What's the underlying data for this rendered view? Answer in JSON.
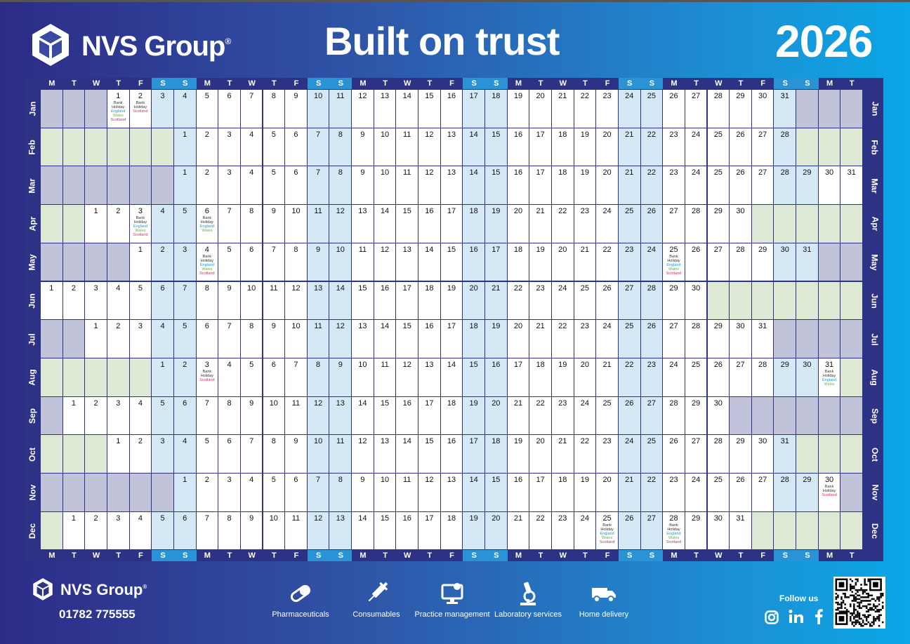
{
  "brand": {
    "name": "NVS Group",
    "reg": "®"
  },
  "headline": "Built on trust",
  "year": "2026",
  "weekday_header": [
    "M",
    "T",
    "W",
    "T",
    "F",
    "S",
    "S",
    "M",
    "T",
    "W",
    "T",
    "F",
    "S",
    "S",
    "M",
    "T",
    "W",
    "T",
    "F",
    "S",
    "S",
    "M",
    "T",
    "W",
    "T",
    "F",
    "S",
    "S",
    "M",
    "T",
    "W",
    "T",
    "F",
    "S",
    "S",
    "M",
    "T"
  ],
  "holiday_label": [
    "Bank",
    "Holiday"
  ],
  "holiday_regions": {
    "en": "England",
    "wa": "Wales",
    "sc": "Scotland"
  },
  "months": [
    {
      "label": "Jan",
      "offset": 3,
      "days": 31,
      "gray": true,
      "holidays": {
        "1": [
          "en",
          "wa",
          "sc"
        ],
        "2": [
          "sc"
        ]
      }
    },
    {
      "label": "Feb",
      "offset": 6,
      "days": 28,
      "gray": false,
      "holidays": {}
    },
    {
      "label": "Mar",
      "offset": 6,
      "days": 31,
      "gray": true,
      "holidays": {}
    },
    {
      "label": "Apr",
      "offset": 2,
      "days": 30,
      "gray": false,
      "holidays": {
        "3": [
          "en",
          "wa",
          "sc"
        ],
        "6": [
          "en",
          "wa"
        ]
      }
    },
    {
      "label": "May",
      "offset": 4,
      "days": 31,
      "gray": true,
      "holidays": {
        "4": [
          "en",
          "wa",
          "sc"
        ],
        "25": [
          "en",
          "wa",
          "sc"
        ]
      }
    },
    {
      "label": "Jun",
      "offset": 0,
      "days": 30,
      "gray": false,
      "holidays": {}
    },
    {
      "label": "Jul",
      "offset": 2,
      "days": 31,
      "gray": true,
      "holidays": {}
    },
    {
      "label": "Aug",
      "offset": 5,
      "days": 31,
      "gray": false,
      "holidays": {
        "3": [
          "sc"
        ],
        "31": [
          "en",
          "wa"
        ]
      }
    },
    {
      "label": "Sep",
      "offset": 1,
      "days": 30,
      "gray": true,
      "holidays": {}
    },
    {
      "label": "Oct",
      "offset": 3,
      "days": 31,
      "gray": false,
      "holidays": {}
    },
    {
      "label": "Nov",
      "offset": 6,
      "days": 30,
      "gray": true,
      "holidays": {
        "30": [
          "sc"
        ]
      }
    },
    {
      "label": "Dec",
      "offset": 1,
      "days": 31,
      "gray": false,
      "holidays": {
        "25": [
          "en",
          "wa",
          "sc"
        ],
        "28": [
          "en",
          "wa",
          "sc"
        ]
      }
    }
  ],
  "footer": {
    "phone": "01782 775555",
    "services": [
      {
        "label": "Pharmaceuticals",
        "icon": "pill-icon"
      },
      {
        "label": "Consumables",
        "icon": "syringe-icon"
      },
      {
        "label": "Practice management",
        "icon": "computer-icon"
      },
      {
        "label": "Laboratory services",
        "icon": "microscope-icon"
      },
      {
        "label": "Home delivery",
        "icon": "van-icon"
      }
    ],
    "follow": "Follow us",
    "socials": [
      "instagram-icon",
      "linkedin-icon",
      "facebook-icon"
    ]
  },
  "colors": {
    "weekend": "#d5e8f6",
    "pad_a": "#c1c3da",
    "pad_b": "#dde9d4",
    "header_weekend": "#2a93d5",
    "dark": "#2d3285"
  }
}
